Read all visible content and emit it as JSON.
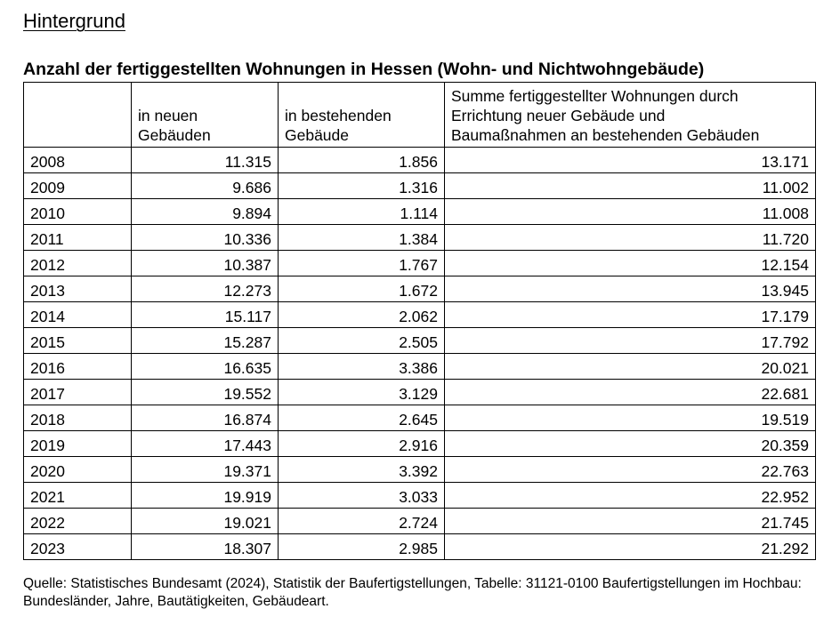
{
  "heading": "Hintergrund",
  "table_title": "Anzahl der fertiggestellten Wohnungen in Hessen (Wohn- und Nichtwohngebäude)",
  "table": {
    "headers": [
      "",
      "in neuen\nGebäuden",
      "in bestehenden\nGebäude",
      "Summe fertiggestellter Wohnungen durch\nErrichtung neuer Gebäude und\nBaumaßnahmen an bestehenden Gebäuden"
    ],
    "rows": [
      [
        "2008",
        "11.315",
        "1.856",
        "13.171"
      ],
      [
        "2009",
        "9.686",
        "1.316",
        "11.002"
      ],
      [
        "2010",
        "9.894",
        "1.114",
        "11.008"
      ],
      [
        "2011",
        "10.336",
        "1.384",
        "11.720"
      ],
      [
        "2012",
        "10.387",
        "1.767",
        "12.154"
      ],
      [
        "2013",
        "12.273",
        "1.672",
        "13.945"
      ],
      [
        "2014",
        "15.117",
        "2.062",
        "17.179"
      ],
      [
        "2015",
        "15.287",
        "2.505",
        "17.792"
      ],
      [
        "2016",
        "16.635",
        "3.386",
        "20.021"
      ],
      [
        "2017",
        "19.552",
        "3.129",
        "22.681"
      ],
      [
        "2018",
        "16.874",
        "2.645",
        "19.519"
      ],
      [
        "2019",
        "17.443",
        "2.916",
        "20.359"
      ],
      [
        "2020",
        "19.371",
        "3.392",
        "22.763"
      ],
      [
        "2021",
        "19.919",
        "3.033",
        "22.952"
      ],
      [
        "2022",
        "19.021",
        "2.724",
        "21.745"
      ],
      [
        "2023",
        "18.307",
        "2.985",
        "21.292"
      ]
    ]
  },
  "source": "Quelle: Statistisches Bundesamt (2024), Statistik der Baufertigstellungen, Tabelle: 31121-0100 Baufertigstellungen im Hochbau: Bundesländer, Jahre, Bautätigkeiten, Gebäudeart."
}
